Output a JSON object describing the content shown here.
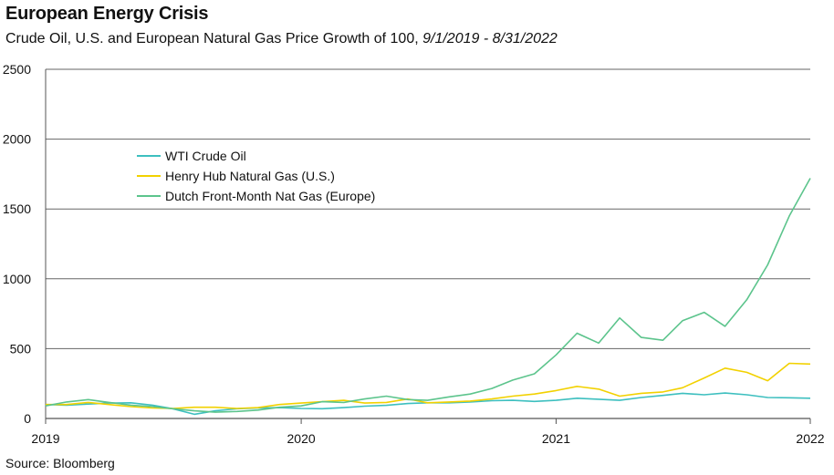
{
  "title": "European Energy Crisis",
  "subtitle_main": "Crude Oil, U.S. and European Natural Gas Price Growth of 100, ",
  "subtitle_dates": "9/1/2019 - 8/31/2022",
  "source": "Source: Bloomberg",
  "chart_data": {
    "type": "line",
    "title": "European Energy Crisis",
    "subtitle": "Crude Oil, U.S. and European Natural Gas Price Growth of 100, 9/1/2019 - 8/31/2022",
    "xlabel": "",
    "ylabel": "",
    "ylim": [
      0,
      2500
    ],
    "yticks": [
      0,
      500,
      1000,
      1500,
      2000,
      2500
    ],
    "xlim": [
      "2019-09-01",
      "2022-08-31"
    ],
    "xticks": [
      {
        "label": "2019",
        "date": "2019-09-01"
      },
      {
        "label": "2020",
        "date": "2020-09-01"
      },
      {
        "label": "2021",
        "date": "2021-09-01"
      },
      {
        "label": "2022",
        "date": "2022-08-31"
      }
    ],
    "grid": "horizontal",
    "legend_position": "upper-left-inside",
    "series": [
      {
        "name": "WTI Crude Oil",
        "color": "#3dbfbf",
        "points": [
          [
            "2019-09-01",
            100
          ],
          [
            "2019-10-01",
            95
          ],
          [
            "2019-11-01",
            103
          ],
          [
            "2019-12-01",
            110
          ],
          [
            "2020-01-01",
            112
          ],
          [
            "2020-02-01",
            95
          ],
          [
            "2020-03-01",
            70
          ],
          [
            "2020-04-01",
            30
          ],
          [
            "2020-05-01",
            55
          ],
          [
            "2020-06-01",
            70
          ],
          [
            "2020-07-01",
            75
          ],
          [
            "2020-08-01",
            78
          ],
          [
            "2020-09-01",
            72
          ],
          [
            "2020-10-01",
            70
          ],
          [
            "2020-11-01",
            78
          ],
          [
            "2020-12-01",
            88
          ],
          [
            "2021-01-01",
            94
          ],
          [
            "2021-02-01",
            107
          ],
          [
            "2021-03-01",
            112
          ],
          [
            "2021-04-01",
            112
          ],
          [
            "2021-05-01",
            118
          ],
          [
            "2021-06-01",
            127
          ],
          [
            "2021-07-01",
            130
          ],
          [
            "2021-08-01",
            122
          ],
          [
            "2021-09-01",
            130
          ],
          [
            "2021-10-01",
            145
          ],
          [
            "2021-11-01",
            138
          ],
          [
            "2021-12-01",
            130
          ],
          [
            "2022-01-01",
            150
          ],
          [
            "2022-02-01",
            165
          ],
          [
            "2022-03-01",
            180
          ],
          [
            "2022-04-01",
            170
          ],
          [
            "2022-05-01",
            182
          ],
          [
            "2022-06-01",
            170
          ],
          [
            "2022-07-01",
            150
          ],
          [
            "2022-08-01",
            148
          ],
          [
            "2022-08-31",
            145
          ]
        ]
      },
      {
        "name": "Henry Hub Natural Gas (U.S.)",
        "color": "#f2d100",
        "points": [
          [
            "2019-09-01",
            100
          ],
          [
            "2019-10-01",
            100
          ],
          [
            "2019-11-01",
            115
          ],
          [
            "2019-12-01",
            100
          ],
          [
            "2020-01-01",
            85
          ],
          [
            "2020-02-01",
            75
          ],
          [
            "2020-03-01",
            72
          ],
          [
            "2020-04-01",
            80
          ],
          [
            "2020-05-01",
            80
          ],
          [
            "2020-06-01",
            72
          ],
          [
            "2020-07-01",
            78
          ],
          [
            "2020-08-01",
            100
          ],
          [
            "2020-09-01",
            110
          ],
          [
            "2020-10-01",
            120
          ],
          [
            "2020-11-01",
            130
          ],
          [
            "2020-12-01",
            110
          ],
          [
            "2021-01-01",
            115
          ],
          [
            "2021-02-01",
            140
          ],
          [
            "2021-03-01",
            112
          ],
          [
            "2021-04-01",
            118
          ],
          [
            "2021-05-01",
            125
          ],
          [
            "2021-06-01",
            140
          ],
          [
            "2021-07-01",
            160
          ],
          [
            "2021-08-01",
            175
          ],
          [
            "2021-09-01",
            200
          ],
          [
            "2021-10-01",
            230
          ],
          [
            "2021-11-01",
            210
          ],
          [
            "2021-12-01",
            160
          ],
          [
            "2022-01-01",
            180
          ],
          [
            "2022-02-01",
            190
          ],
          [
            "2022-03-01",
            220
          ],
          [
            "2022-04-01",
            290
          ],
          [
            "2022-05-01",
            360
          ],
          [
            "2022-06-01",
            330
          ],
          [
            "2022-07-01",
            270
          ],
          [
            "2022-08-01",
            395
          ],
          [
            "2022-08-31",
            390
          ]
        ]
      },
      {
        "name": "Dutch Front-Month Nat Gas (Europe)",
        "color": "#5cc48c",
        "points": [
          [
            "2019-09-01",
            90
          ],
          [
            "2019-10-01",
            118
          ],
          [
            "2019-11-01",
            135
          ],
          [
            "2019-12-01",
            115
          ],
          [
            "2020-01-01",
            95
          ],
          [
            "2020-02-01",
            85
          ],
          [
            "2020-03-01",
            70
          ],
          [
            "2020-04-01",
            55
          ],
          [
            "2020-05-01",
            45
          ],
          [
            "2020-06-01",
            50
          ],
          [
            "2020-07-01",
            60
          ],
          [
            "2020-08-01",
            80
          ],
          [
            "2020-09-01",
            90
          ],
          [
            "2020-10-01",
            120
          ],
          [
            "2020-11-01",
            115
          ],
          [
            "2020-12-01",
            140
          ],
          [
            "2021-01-01",
            160
          ],
          [
            "2021-02-01",
            135
          ],
          [
            "2021-03-01",
            130
          ],
          [
            "2021-04-01",
            155
          ],
          [
            "2021-05-01",
            175
          ],
          [
            "2021-06-01",
            215
          ],
          [
            "2021-07-01",
            275
          ],
          [
            "2021-08-01",
            320
          ],
          [
            "2021-09-01",
            455
          ],
          [
            "2021-10-01",
            610
          ],
          [
            "2021-11-01",
            540
          ],
          [
            "2021-12-01",
            720
          ],
          [
            "2022-01-01",
            580
          ],
          [
            "2022-02-01",
            560
          ],
          [
            "2022-03-01",
            700
          ],
          [
            "2022-04-01",
            760
          ],
          [
            "2022-05-01",
            660
          ],
          [
            "2022-06-01",
            850
          ],
          [
            "2022-07-01",
            1100
          ],
          [
            "2022-08-01",
            1450
          ],
          [
            "2022-08-31",
            1720
          ]
        ]
      }
    ]
  }
}
